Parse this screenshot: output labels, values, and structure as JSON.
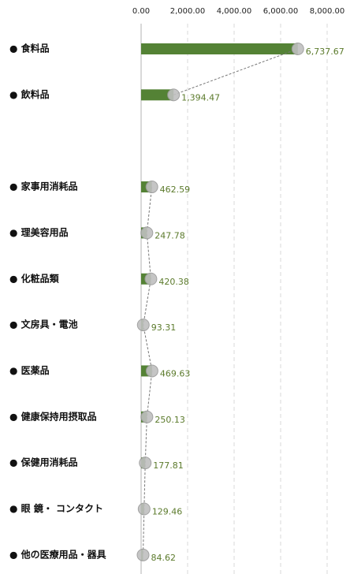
{
  "chart_data": {
    "type": "bar",
    "orientation": "horizontal",
    "categories": [
      "● 食料品",
      "● 飲料品",
      null,
      "● 家事用消耗品",
      "● 理美容用品",
      "● 化粧品類",
      "● 文房具・電池",
      "● 医薬品",
      "● 健康保持用摂取品",
      "● 保健用消耗品",
      "● 眼 鏡・ コンタクト",
      "● 他の医療用品・器具"
    ],
    "values": [
      6737.67,
      1394.47,
      null,
      462.59,
      247.78,
      420.38,
      93.31,
      469.63,
      250.13,
      177.81,
      129.46,
      84.62
    ],
    "value_labels": [
      "6,737.67",
      "1,394.47",
      null,
      "462.59",
      "247.78",
      "420.38",
      "93.31",
      "469.63",
      "250.13",
      "177.81",
      "129.46",
      "84.62"
    ],
    "color": "#548235",
    "line_color": "#777777",
    "marker_color": "#bfbfbf",
    "label_color": "#5b7a2b",
    "xlim": [
      0,
      8000
    ],
    "xticks": [
      {
        "value": 0,
        "label": "0.00"
      },
      {
        "value": 2000,
        "label": "2,000.00"
      },
      {
        "value": 4000,
        "label": "4,000.00"
      },
      {
        "value": 6000,
        "label": "6,000.00"
      },
      {
        "value": 8000,
        "label": "8,000.00"
      }
    ],
    "grid": true
  }
}
